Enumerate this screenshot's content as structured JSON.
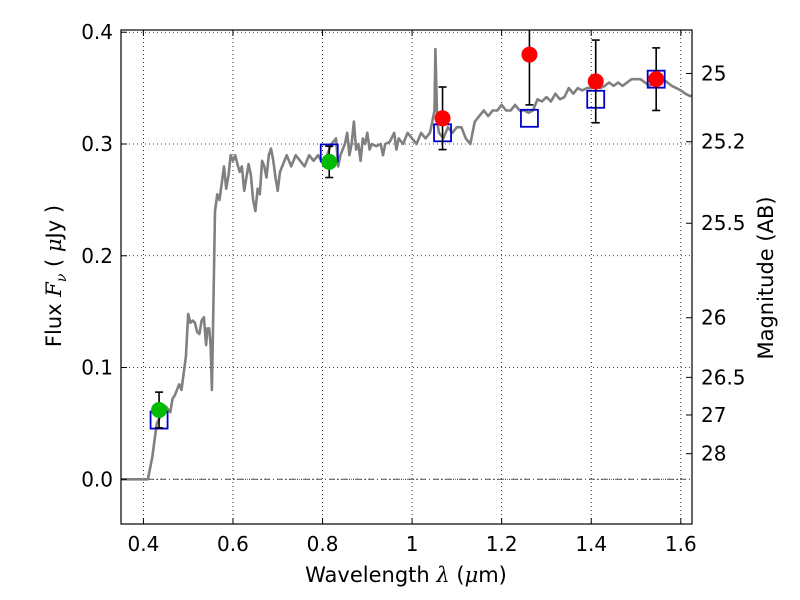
{
  "chart_data": {
    "type": "scatter",
    "title": "",
    "xlabel": {
      "prefix": "Wavelength ",
      "symbol": "λ",
      "open": " (",
      "unit_sym": "μ",
      "unit": "m)"
    },
    "ylabel": {
      "prefix": "Flux ",
      "symbol": "F",
      "sub": "ν",
      "open": " ( ",
      "unit_sym": "μ",
      "unit": "Jy )"
    },
    "y2label": "Magnitude (AB)",
    "xlim": [
      0.35,
      1.625
    ],
    "ylim": [
      -0.04,
      0.402
    ],
    "xticks": [
      {
        "v": 0.4,
        "t": "0.4"
      },
      {
        "v": 0.6,
        "t": "0.6"
      },
      {
        "v": 0.8,
        "t": "0.8"
      },
      {
        "v": 1.0,
        "t": "1"
      },
      {
        "v": 1.2,
        "t": "1.2"
      },
      {
        "v": 1.4,
        "t": "1.4"
      },
      {
        "v": 1.6,
        "t": "1.6"
      }
    ],
    "yticks": [
      {
        "v": 0.0,
        "t": "0.0"
      },
      {
        "v": 0.1,
        "t": "0.1"
      },
      {
        "v": 0.2,
        "t": "0.2"
      },
      {
        "v": 0.3,
        "t": "0.3"
      },
      {
        "v": 0.4,
        "t": "0.4"
      }
    ],
    "mag_ticks": [
      {
        "mag": 25,
        "t": "25"
      },
      {
        "mag": 25.2,
        "t": "25.2"
      },
      {
        "mag": 25.5,
        "t": "25.5"
      },
      {
        "mag": 26,
        "t": "26"
      },
      {
        "mag": 26.5,
        "t": "26.5"
      },
      {
        "mag": 27,
        "t": "27"
      },
      {
        "mag": 28,
        "t": "28"
      }
    ],
    "grid": true,
    "zero_line": 0.0,
    "spectrum": {
      "color": "#808080",
      "points": [
        [
          0.35,
          0.0
        ],
        [
          0.36,
          0.0
        ],
        [
          0.37,
          0.0
        ],
        [
          0.38,
          0.0
        ],
        [
          0.39,
          0.0
        ],
        [
          0.4,
          0.0
        ],
        [
          0.41,
          0.0
        ],
        [
          0.42,
          0.02
        ],
        [
          0.43,
          0.05
        ],
        [
          0.44,
          0.058
        ],
        [
          0.45,
          0.065
        ],
        [
          0.46,
          0.06
        ],
        [
          0.465,
          0.072
        ],
        [
          0.47,
          0.075
        ],
        [
          0.48,
          0.085
        ],
        [
          0.485,
          0.08
        ],
        [
          0.49,
          0.095
        ],
        [
          0.495,
          0.11
        ],
        [
          0.5,
          0.148
        ],
        [
          0.505,
          0.14
        ],
        [
          0.51,
          0.142
        ],
        [
          0.515,
          0.14
        ],
        [
          0.52,
          0.132
        ],
        [
          0.525,
          0.13
        ],
        [
          0.53,
          0.142
        ],
        [
          0.535,
          0.145
        ],
        [
          0.54,
          0.12
        ],
        [
          0.543,
          0.135
        ],
        [
          0.547,
          0.135
        ],
        [
          0.55,
          0.12
        ],
        [
          0.553,
          0.08
        ],
        [
          0.556,
          0.15
        ],
        [
          0.56,
          0.24
        ],
        [
          0.565,
          0.255
        ],
        [
          0.57,
          0.25
        ],
        [
          0.575,
          0.265
        ],
        [
          0.58,
          0.28
        ],
        [
          0.585,
          0.26
        ],
        [
          0.59,
          0.272
        ],
        [
          0.595,
          0.29
        ],
        [
          0.6,
          0.285
        ],
        [
          0.605,
          0.29
        ],
        [
          0.61,
          0.282
        ],
        [
          0.615,
          0.275
        ],
        [
          0.62,
          0.28
        ],
        [
          0.625,
          0.258
        ],
        [
          0.63,
          0.27
        ],
        [
          0.635,
          0.282
        ],
        [
          0.64,
          0.272
        ],
        [
          0.645,
          0.25
        ],
        [
          0.65,
          0.24
        ],
        [
          0.655,
          0.26
        ],
        [
          0.66,
          0.255
        ],
        [
          0.665,
          0.285
        ],
        [
          0.67,
          0.28
        ],
        [
          0.675,
          0.27
        ],
        [
          0.68,
          0.29
        ],
        [
          0.685,
          0.296
        ],
        [
          0.69,
          0.285
        ],
        [
          0.695,
          0.27
        ],
        [
          0.7,
          0.258
        ],
        [
          0.705,
          0.275
        ],
        [
          0.71,
          0.28
        ],
        [
          0.72,
          0.29
        ],
        [
          0.73,
          0.28
        ],
        [
          0.74,
          0.29
        ],
        [
          0.75,
          0.285
        ],
        [
          0.76,
          0.28
        ],
        [
          0.77,
          0.29
        ],
        [
          0.78,
          0.285
        ],
        [
          0.79,
          0.29
        ],
        [
          0.8,
          0.283
        ],
        [
          0.81,
          0.29
        ],
        [
          0.82,
          0.3
        ],
        [
          0.83,
          0.305
        ],
        [
          0.835,
          0.28
        ],
        [
          0.84,
          0.29
        ],
        [
          0.85,
          0.3
        ],
        [
          0.855,
          0.31
        ],
        [
          0.86,
          0.29
        ],
        [
          0.865,
          0.3
        ],
        [
          0.87,
          0.32
        ],
        [
          0.875,
          0.295
        ],
        [
          0.88,
          0.3
        ],
        [
          0.885,
          0.285
        ],
        [
          0.89,
          0.305
        ],
        [
          0.895,
          0.3
        ],
        [
          0.9,
          0.31
        ],
        [
          0.905,
          0.295
        ],
        [
          0.91,
          0.3
        ],
        [
          0.92,
          0.298
        ],
        [
          0.93,
          0.3
        ],
        [
          0.935,
          0.29
        ],
        [
          0.94,
          0.3
        ],
        [
          0.95,
          0.302
        ],
        [
          0.96,
          0.31
        ],
        [
          0.965,
          0.295
        ],
        [
          0.97,
          0.305
        ],
        [
          0.98,
          0.3
        ],
        [
          0.99,
          0.31
        ],
        [
          1.0,
          0.305
        ],
        [
          1.01,
          0.3
        ],
        [
          1.02,
          0.31
        ],
        [
          1.03,
          0.305
        ],
        [
          1.04,
          0.31
        ],
        [
          1.045,
          0.32
        ],
        [
          1.05,
          0.33
        ],
        [
          1.052,
          0.385
        ],
        [
          1.056,
          0.32
        ],
        [
          1.06,
          0.31
        ],
        [
          1.07,
          0.305
        ],
        [
          1.08,
          0.315
        ],
        [
          1.09,
          0.31
        ],
        [
          1.1,
          0.315
        ],
        [
          1.11,
          0.315
        ],
        [
          1.12,
          0.305
        ],
        [
          1.13,
          0.3
        ],
        [
          1.14,
          0.32
        ],
        [
          1.15,
          0.325
        ],
        [
          1.16,
          0.33
        ],
        [
          1.17,
          0.325
        ],
        [
          1.18,
          0.33
        ],
        [
          1.19,
          0.33
        ],
        [
          1.2,
          0.335
        ],
        [
          1.21,
          0.33
        ],
        [
          1.22,
          0.33
        ],
        [
          1.23,
          0.335
        ],
        [
          1.24,
          0.33
        ],
        [
          1.25,
          0.33
        ],
        [
          1.26,
          0.328
        ],
        [
          1.27,
          0.33
        ],
        [
          1.28,
          0.34
        ],
        [
          1.29,
          0.338
        ],
        [
          1.3,
          0.342
        ],
        [
          1.31,
          0.338
        ],
        [
          1.32,
          0.345
        ],
        [
          1.33,
          0.34
        ],
        [
          1.34,
          0.342
        ],
        [
          1.35,
          0.35
        ],
        [
          1.36,
          0.345
        ],
        [
          1.37,
          0.35
        ],
        [
          1.38,
          0.348
        ],
        [
          1.39,
          0.35
        ],
        [
          1.4,
          0.35
        ],
        [
          1.41,
          0.352
        ],
        [
          1.42,
          0.35
        ],
        [
          1.43,
          0.352
        ],
        [
          1.44,
          0.355
        ],
        [
          1.45,
          0.352
        ],
        [
          1.46,
          0.355
        ],
        [
          1.47,
          0.352
        ],
        [
          1.48,
          0.355
        ],
        [
          1.49,
          0.358
        ],
        [
          1.5,
          0.358
        ],
        [
          1.51,
          0.358
        ],
        [
          1.52,
          0.355
        ],
        [
          1.53,
          0.352
        ],
        [
          1.54,
          0.355
        ],
        [
          1.55,
          0.36
        ],
        [
          1.56,
          0.358
        ],
        [
          1.57,
          0.355
        ],
        [
          1.58,
          0.352
        ],
        [
          1.59,
          0.35
        ],
        [
          1.6,
          0.348
        ],
        [
          1.61,
          0.345
        ],
        [
          1.62,
          0.343
        ],
        [
          1.625,
          0.343
        ]
      ]
    },
    "model_boxes": {
      "color": "#0000cc",
      "points": [
        [
          0.435,
          0.053
        ],
        [
          0.815,
          0.292
        ],
        [
          1.068,
          0.31
        ],
        [
          1.262,
          0.323
        ],
        [
          1.41,
          0.34
        ],
        [
          1.545,
          0.358
        ]
      ]
    },
    "observations": [
      {
        "x": 0.435,
        "y": 0.062,
        "yerr": 0.016,
        "color": "#00bb00"
      },
      {
        "x": 0.815,
        "y": 0.284,
        "yerr": 0.014,
        "color": "#00bb00"
      },
      {
        "x": 1.068,
        "y": 0.323,
        "yerr": 0.028,
        "color": "#ff0000"
      },
      {
        "x": 1.262,
        "y": 0.38,
        "yerr": 0.045,
        "color": "#ff0000"
      },
      {
        "x": 1.41,
        "y": 0.356,
        "yerr": 0.037,
        "color": "#ff0000"
      },
      {
        "x": 1.545,
        "y": 0.358,
        "yerr": 0.028,
        "color": "#ff0000"
      }
    ]
  }
}
